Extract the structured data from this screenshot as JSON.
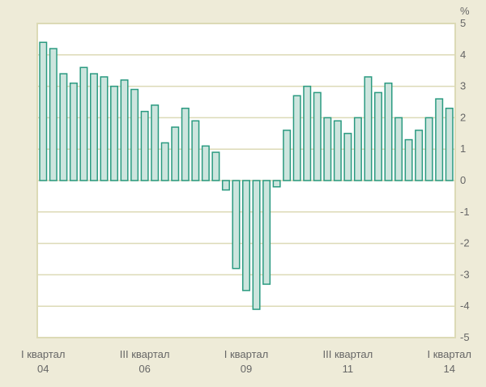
{
  "chart_data": {
    "type": "bar",
    "title": "",
    "ylabel": "%",
    "xlabel": "",
    "ylim": [
      -5,
      5
    ],
    "yticks": [
      5,
      4,
      3,
      2,
      1,
      0,
      -1,
      -2,
      -3,
      -4,
      -5
    ],
    "grid": true,
    "categories": [
      "2004 Q1",
      "2004 Q2",
      "2004 Q3",
      "2004 Q4",
      "2005 Q1",
      "2005 Q2",
      "2005 Q3",
      "2005 Q4",
      "2006 Q1",
      "2006 Q2",
      "2006 Q3",
      "2006 Q4",
      "2007 Q1",
      "2007 Q2",
      "2007 Q3",
      "2007 Q4",
      "2008 Q1",
      "2008 Q2",
      "2008 Q3",
      "2008 Q4",
      "2009 Q1",
      "2009 Q2",
      "2009 Q3",
      "2009 Q4",
      "2010 Q1",
      "2010 Q2",
      "2010 Q3",
      "2010 Q4",
      "2011 Q1",
      "2011 Q2",
      "2011 Q3",
      "2011 Q4",
      "2012 Q1",
      "2012 Q2",
      "2012 Q3",
      "2012 Q4",
      "2013 Q1",
      "2013 Q2",
      "2013 Q3",
      "2013 Q4",
      "2014 Q1"
    ],
    "values": [
      4.4,
      4.2,
      3.4,
      3.1,
      3.6,
      3.4,
      3.3,
      3.0,
      3.2,
      2.9,
      2.2,
      2.4,
      1.2,
      1.7,
      2.3,
      1.9,
      1.1,
      0.9,
      -0.3,
      -2.8,
      -3.5,
      -4.1,
      -3.3,
      -0.2,
      1.6,
      2.7,
      3.0,
      2.8,
      2.0,
      1.9,
      1.5,
      2.0,
      3.3,
      2.8,
      3.1,
      2.0,
      1.3,
      1.6,
      2.0,
      2.6,
      2.3
    ],
    "xtick_labels": [
      {
        "index": 0,
        "line1": "I квартал",
        "line2": "04"
      },
      {
        "index": 10,
        "line1": "III квартал",
        "line2": "06"
      },
      {
        "index": 20,
        "line1": "I квартал",
        "line2": "09"
      },
      {
        "index": 30,
        "line1": "III квартал",
        "line2": "11"
      },
      {
        "index": 40,
        "line1": "I квартал",
        "line2": "14"
      }
    ],
    "colors": {
      "bar_fill": "#cde5de",
      "bar_stroke": "#2a9a80",
      "grid": "#dcdab6",
      "plot_bg": "#ffffff"
    }
  }
}
